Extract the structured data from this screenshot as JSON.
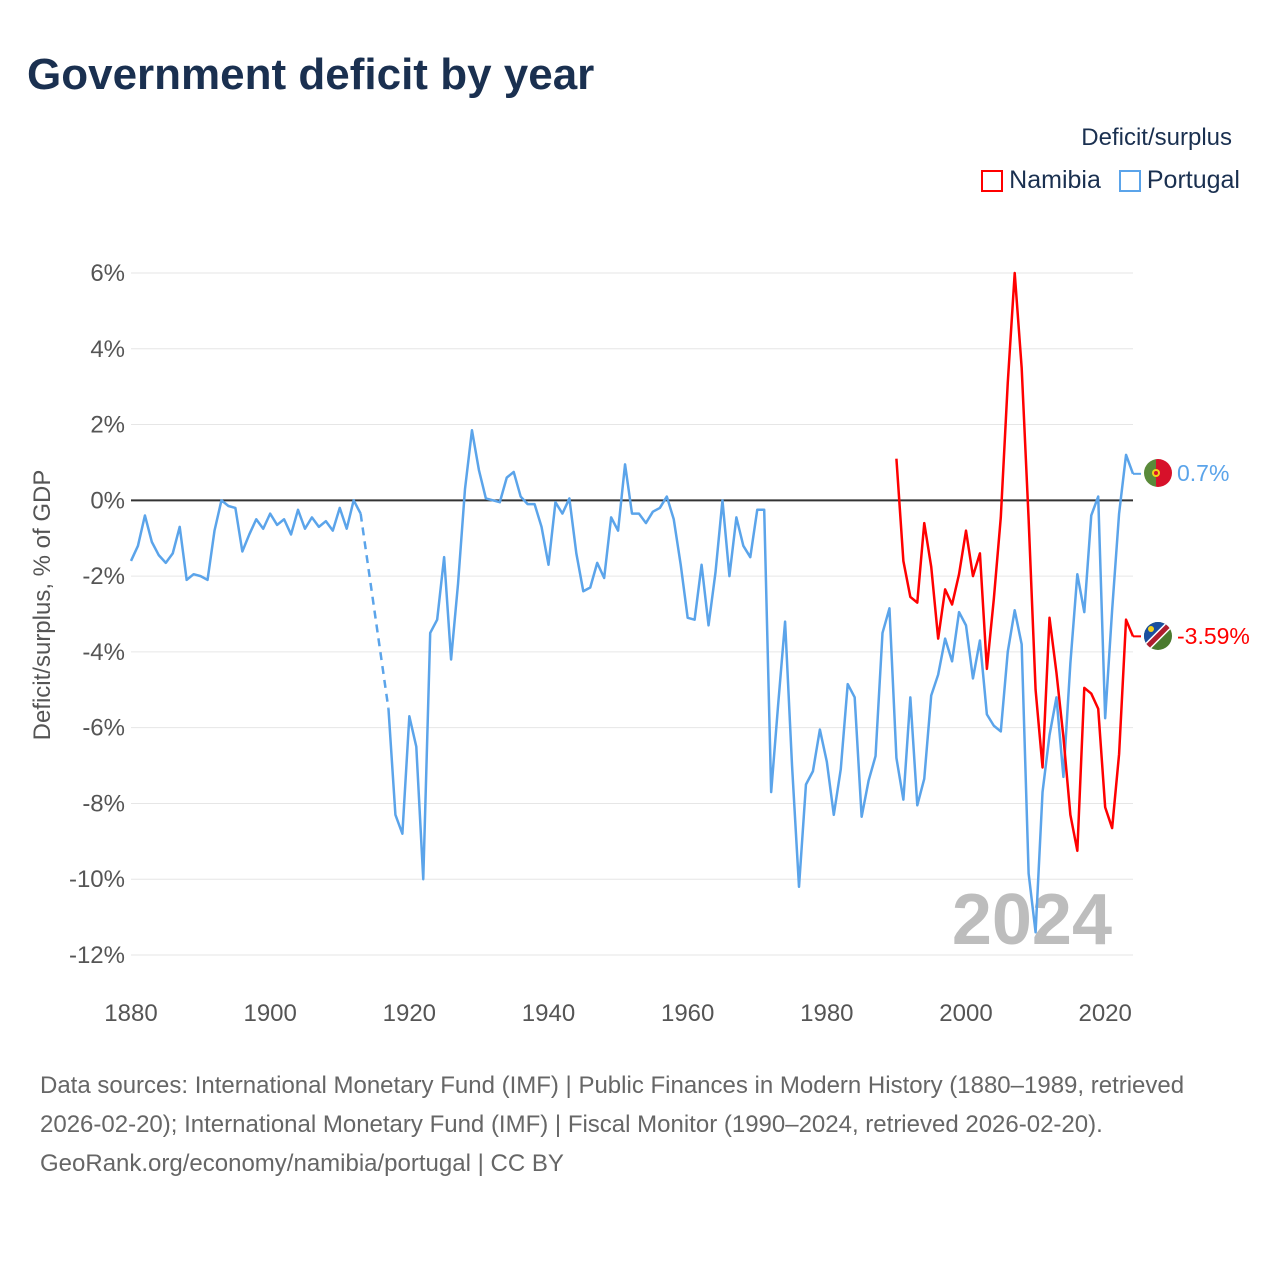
{
  "title": "Government deficit by year",
  "legend": {
    "title": "Deficit/surplus",
    "items": [
      {
        "name": "Namibia",
        "color": "#ff0000"
      },
      {
        "name": "Portugal",
        "color": "#5ba4ea"
      }
    ]
  },
  "watermark_year": "2024",
  "end_labels": {
    "portugal": "0.7%",
    "namibia": "-3.59%"
  },
  "footer": {
    "sources": "Data sources: International Monetary Fund (IMF) | Public Finances in Modern History (1880–1989, retrieved 2026-02-20); International Monetary Fund (IMF) | Fiscal Monitor (1990–2024, retrieved 2026-02-20).",
    "credit": "GeoRank.org/economy/namibia/portugal | CC BY"
  },
  "chart_data": {
    "type": "line",
    "title": "Government deficit by year",
    "xlabel": "",
    "ylabel": "Deficit/surplus, % of GDP",
    "xlim": [
      1880,
      2024
    ],
    "ylim": [
      -12,
      6
    ],
    "xticks": [
      1880,
      1900,
      1920,
      1940,
      1960,
      1980,
      2000,
      2020
    ],
    "xtick_labels": [
      "1880",
      "1900",
      "1920",
      "1940",
      "1960",
      "1980",
      "2000",
      "2020"
    ],
    "yticks": [
      6,
      4,
      2,
      0,
      -2,
      -4,
      -6,
      -8,
      -10,
      -12
    ],
    "ytick_labels": [
      "6%",
      "4%",
      "2%",
      "0%",
      "-2%",
      "-4%",
      "-6%",
      "-8%",
      "-10%",
      "-12%"
    ],
    "grid": true,
    "legend_position": "top-right",
    "series": [
      {
        "name": "Portugal",
        "color": "#5ba4ea",
        "start_year": 1880,
        "values": [
          -1.6,
          -1.2,
          -0.4,
          -1.1,
          -1.45,
          -1.65,
          -1.4,
          -0.7,
          -2.1,
          -1.95,
          -2.0,
          -2.1,
          -0.8,
          0,
          -0.15,
          -0.2,
          -1.35,
          -0.9,
          -0.5,
          -0.75,
          -0.35,
          -0.65,
          -0.5,
          -0.9,
          -0.25,
          -0.75,
          -0.45,
          -0.7,
          -0.55,
          -0.8,
          -0.2,
          -0.75,
          0,
          -0.35,
          null,
          null,
          null,
          -5.5,
          -8.3,
          -8.8,
          -5.7,
          -6.5,
          -10.0,
          -3.5,
          -3.15,
          -1.5,
          -4.2,
          -2.2,
          0.3,
          1.85,
          0.8,
          0.05,
          0,
          -0.05,
          0.6,
          0.75,
          0.1,
          -0.1,
          -0.1,
          -0.7,
          -1.7,
          -0.05,
          -0.35,
          0.05,
          -1.4,
          -2.4,
          -2.3,
          -1.65,
          -2.05,
          -0.45,
          -0.8,
          0.95,
          -0.35,
          -0.35,
          -0.6,
          -0.3,
          -0.2,
          0.1,
          -0.5,
          -1.7,
          -3.1,
          -3.15,
          -1.7,
          -3.3,
          -1.9,
          0,
          -2.0,
          -0.45,
          -1.2,
          -1.5,
          -0.25,
          -0.25,
          -7.7,
          -5.4,
          -3.2,
          -7.0,
          -10.2,
          -7.5,
          -7.15,
          -6.05,
          -6.9,
          -8.3,
          -7.1,
          -4.85,
          -5.2,
          -8.35,
          -7.4,
          -6.75,
          -3.5,
          -2.85,
          -6.8,
          -7.9,
          -5.2,
          -8.05,
          -7.35,
          -5.15,
          -4.6,
          -3.65,
          -4.25,
          -2.95,
          -3.3,
          -4.7,
          -3.7,
          -5.65,
          -5.95,
          -6.1,
          -4.0,
          -2.9,
          -3.8,
          -9.85,
          -11.4,
          -7.7,
          -6.2,
          -5.2,
          -7.3,
          -4.3,
          -1.95,
          -2.95,
          -0.4,
          0.1,
          -5.75,
          -2.9,
          -0.35,
          1.2,
          0.7
        ]
      },
      {
        "name": "Namibia",
        "color": "#ff0000",
        "start_year": 1990,
        "values": [
          1.1,
          -1.6,
          -2.55,
          -2.7,
          -0.6,
          -1.75,
          -3.65,
          -2.35,
          -2.75,
          -1.95,
          -0.8,
          -2.0,
          -1.4,
          -4.45,
          -2.6,
          -0.45,
          3.1,
          6.0,
          3.5,
          -0.5,
          -5.0,
          -7.05,
          -3.1,
          -4.55,
          -6.25,
          -8.3,
          -9.25,
          -4.95,
          -5.1,
          -5.5,
          -8.1,
          -8.65,
          -6.7,
          -3.15,
          -3.59
        ]
      }
    ]
  }
}
